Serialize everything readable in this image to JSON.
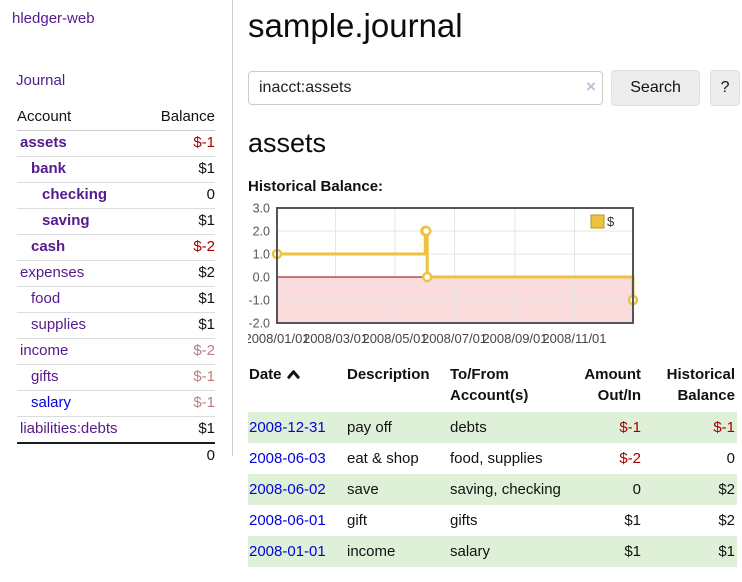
{
  "sidebar": {
    "brand": "hledger-web",
    "journal_link": "Journal",
    "account_header": "Account",
    "balance_header": "Balance",
    "accounts": [
      {
        "name": "assets",
        "balance": "$-1",
        "depth": 1,
        "matched": true,
        "balance_color": "negative-strong",
        "link_color": "purple"
      },
      {
        "name": "bank",
        "balance": "$1",
        "depth": 2,
        "matched": true,
        "balance_color": "normal",
        "link_color": "purple"
      },
      {
        "name": "checking",
        "balance": "0",
        "depth": 3,
        "matched": true,
        "balance_color": "normal",
        "link_color": "purple"
      },
      {
        "name": "saving",
        "balance": "$1",
        "depth": 3,
        "matched": true,
        "balance_color": "normal",
        "link_color": "purple"
      },
      {
        "name": "cash",
        "balance": "$-2",
        "depth": 2,
        "matched": true,
        "balance_color": "negative-strong",
        "link_color": "purple"
      },
      {
        "name": "expenses",
        "balance": "$2",
        "depth": 1,
        "matched": false,
        "balance_color": "normal",
        "link_color": "purple"
      },
      {
        "name": "food",
        "balance": "$1",
        "depth": 2,
        "matched": false,
        "balance_color": "normal",
        "link_color": "purple"
      },
      {
        "name": "supplies",
        "balance": "$1",
        "depth": 2,
        "matched": false,
        "balance_color": "normal",
        "link_color": "purple"
      },
      {
        "name": "income",
        "balance": "$-2",
        "depth": 1,
        "matched": false,
        "balance_color": "negative-muted",
        "link_color": "purple"
      },
      {
        "name": "gifts",
        "balance": "$-1",
        "depth": 2,
        "matched": false,
        "balance_color": "negative-muted",
        "link_color": "purple"
      },
      {
        "name": "salary",
        "balance": "$-1",
        "depth": 2,
        "matched": false,
        "balance_color": "negative-muted",
        "link_color": "blue"
      },
      {
        "name": "liabilities:debts",
        "balance": "$1",
        "depth": 1,
        "matched": false,
        "balance_color": "normal",
        "link_color": "purple"
      }
    ],
    "total": "0"
  },
  "main": {
    "title": "sample.journal",
    "search": {
      "value": "inacct:assets",
      "clear_icon": "×",
      "search_button": "Search",
      "help_button": "?"
    },
    "account_heading": "assets",
    "chart_title": "Historical Balance:"
  },
  "chart_data": {
    "type": "line",
    "step": true,
    "title": "Historical Balance:",
    "series": [
      {
        "name": "$",
        "color": "#edc240",
        "points": [
          [
            "2008-01-01",
            1
          ],
          [
            "2008-06-01",
            2
          ],
          [
            "2008-06-02",
            2
          ],
          [
            "2008-06-03",
            0
          ],
          [
            "2008-12-31",
            -1
          ]
        ]
      }
    ],
    "x_range": [
      "2008-01-01",
      "2008-12-31"
    ],
    "x_tick_labels": [
      "2008/01/01",
      "2008/03/01",
      "2008/05/01",
      "2008/07/01",
      "2008/09/01",
      "2008/11/01"
    ],
    "y_ticks": [
      3,
      2,
      1,
      0,
      -1,
      -2
    ],
    "ylim": [
      -2,
      3
    ],
    "grid": true,
    "legend": {
      "label": "$",
      "position": "top-right"
    },
    "zero_line_color": "#8b0000",
    "negative_region_color": "#fadcdc",
    "border_color": "#555555",
    "gridline_color": "#e6e6e6"
  },
  "register": {
    "headers": {
      "date": "Date",
      "description": "Description",
      "accounts_line1": "To/From",
      "accounts_line2": "Account(s)",
      "amount_line1": "Amount",
      "amount_line2": "Out/In",
      "balance_line1": "Historical",
      "balance_line2": "Balance"
    },
    "rows": [
      {
        "date": "2008-12-31",
        "description": "pay off",
        "accounts": "debts",
        "amount": "$-1",
        "amount_negative": true,
        "balance": "$-1",
        "balance_negative": true
      },
      {
        "date": "2008-06-03",
        "description": "eat & shop",
        "accounts": "food, supplies",
        "amount": "$-2",
        "amount_negative": true,
        "balance": "0",
        "balance_negative": false
      },
      {
        "date": "2008-06-02",
        "description": "save",
        "accounts": "saving, checking",
        "amount": "0",
        "amount_negative": false,
        "balance": "$2",
        "balance_negative": false
      },
      {
        "date": "2008-06-01",
        "description": "gift",
        "accounts": "gifts",
        "amount": "$1",
        "amount_negative": false,
        "balance": "$2",
        "balance_negative": false
      },
      {
        "date": "2008-01-01",
        "description": "income",
        "accounts": "salary",
        "amount": "$1",
        "amount_negative": false,
        "balance": "$1",
        "balance_negative": false
      }
    ]
  },
  "colors": {
    "link_purple": "#551a8b",
    "link_blue": "#0202dd",
    "negative_strong": "#a40000",
    "negative_muted": "#bd7e7e",
    "row_stripe_green": "#dff0d8",
    "series_gold": "#edc240"
  }
}
